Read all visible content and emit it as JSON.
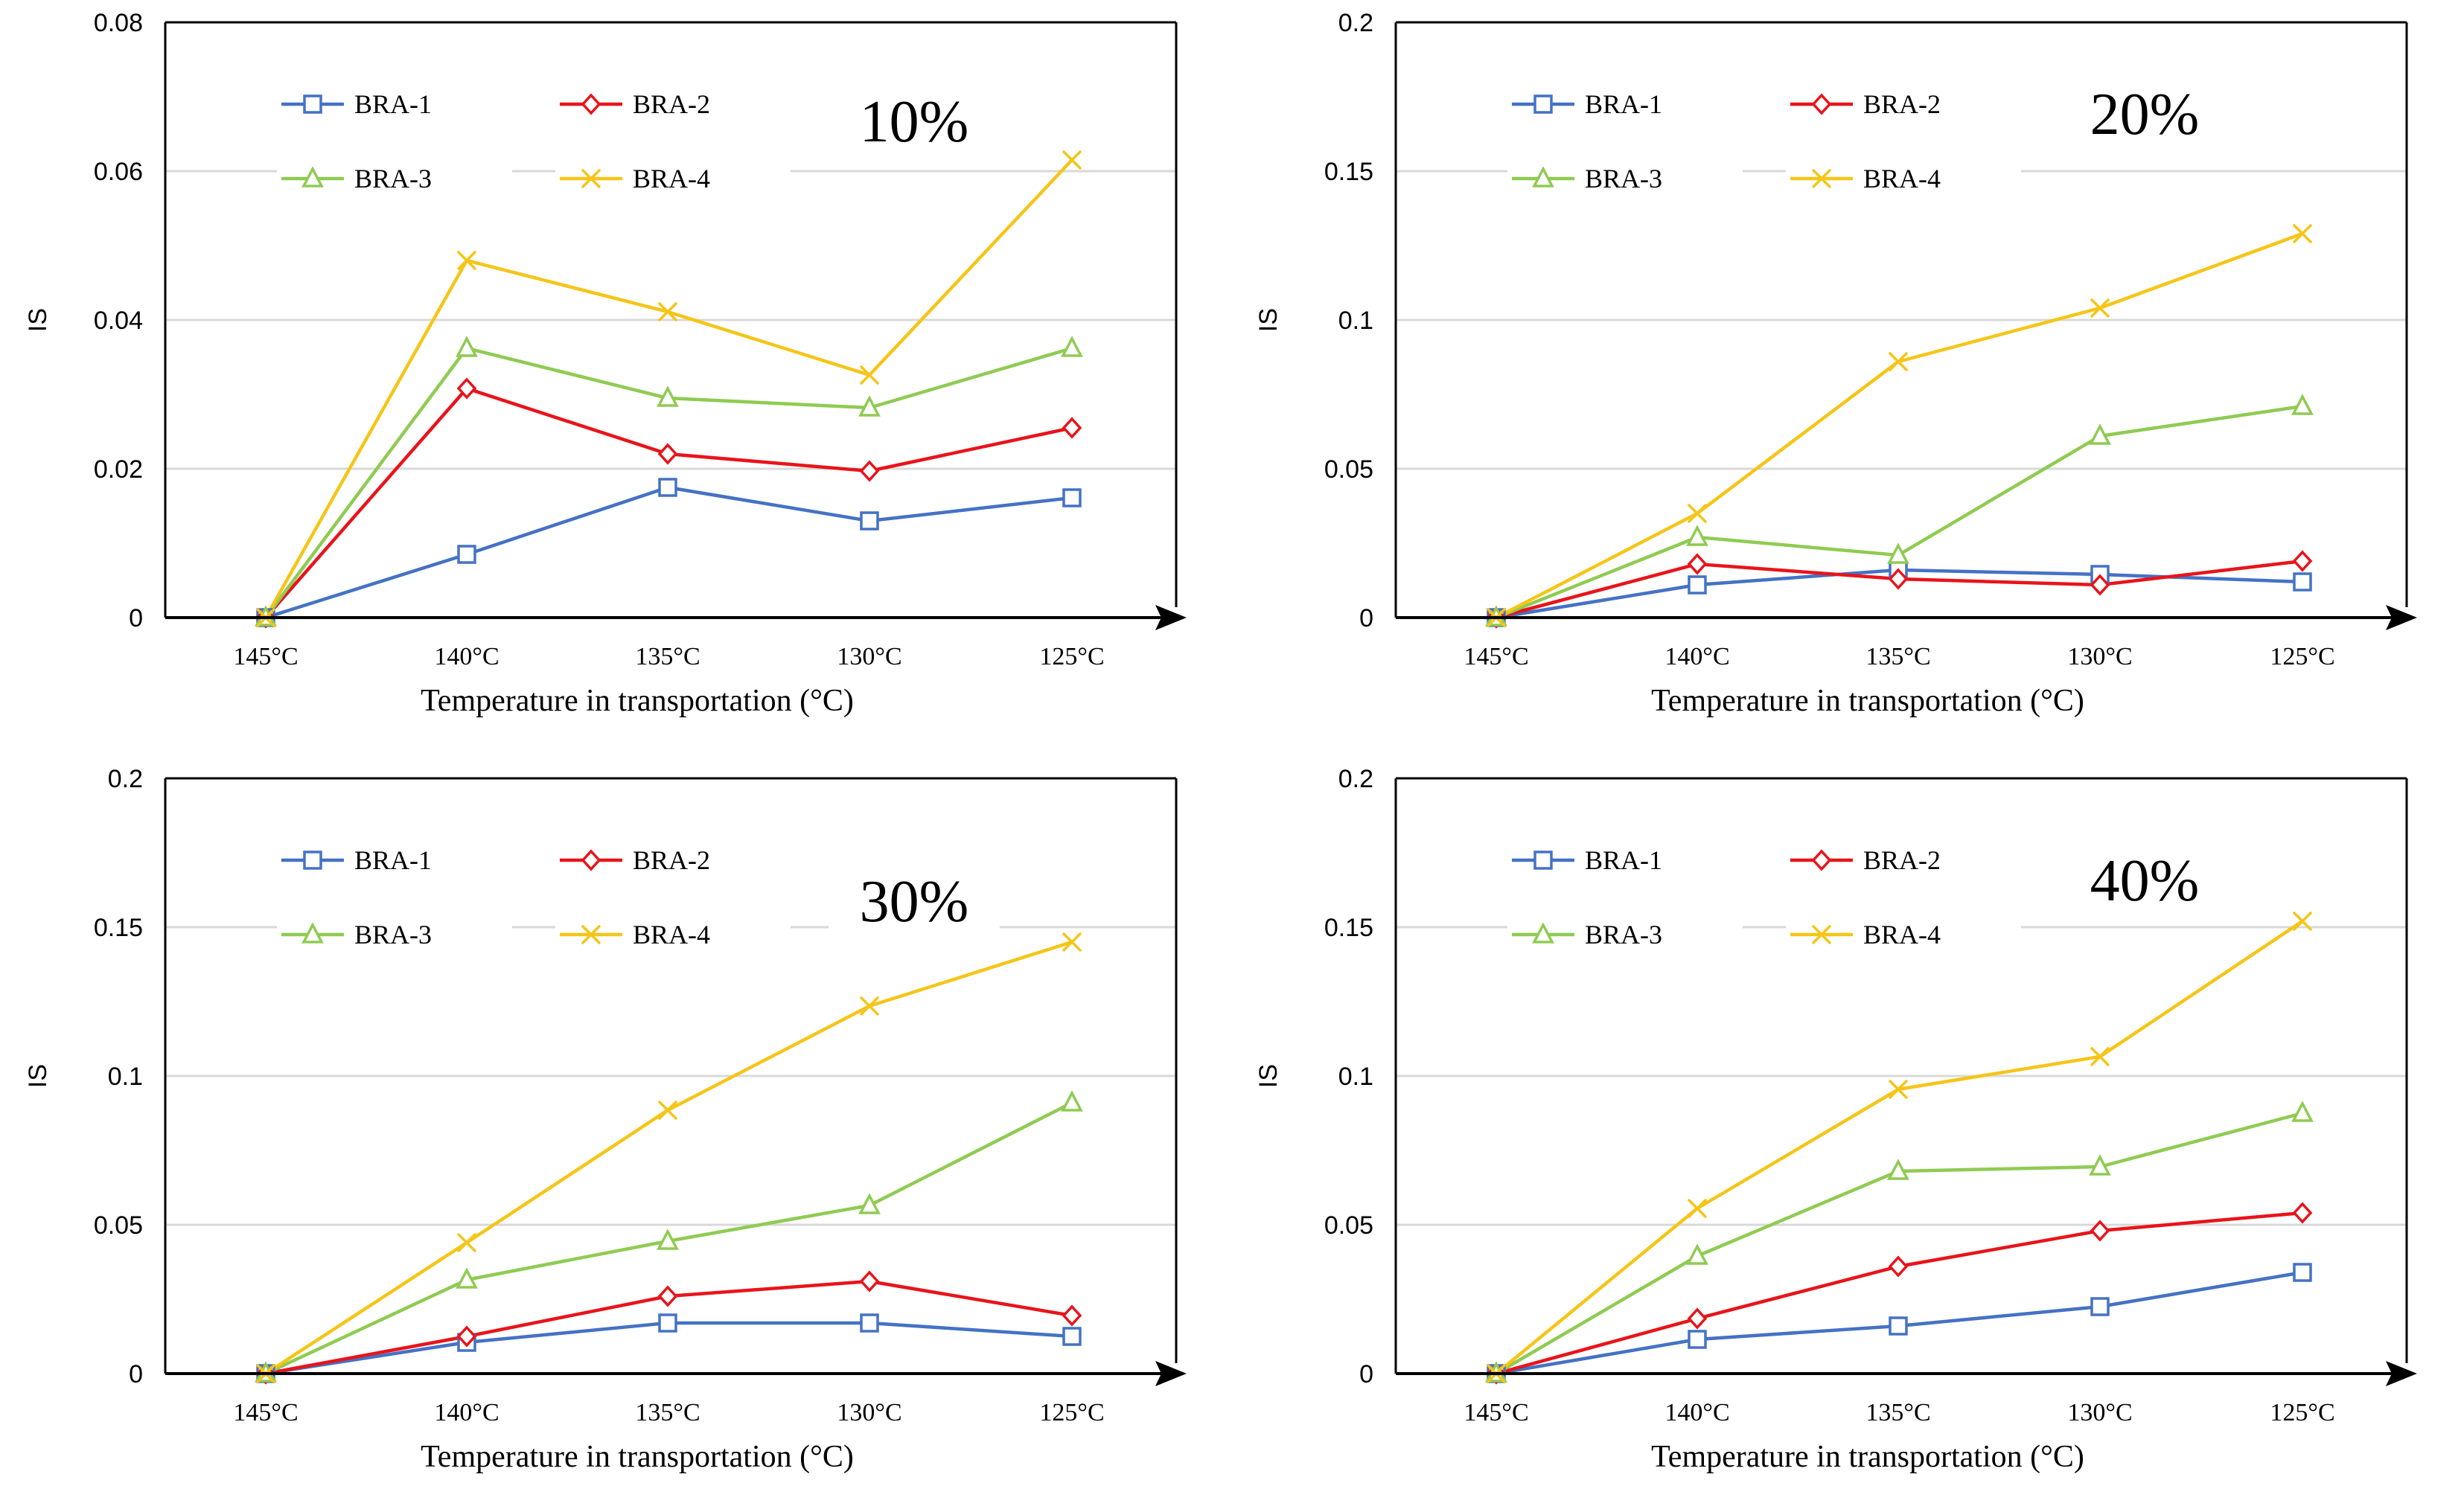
{
  "chart_data": [
    {
      "type": "line",
      "title": "10%",
      "xlabel": "Temperature in transportation (°C)",
      "ylabel": "IS",
      "categories": [
        "145°C",
        "140°C",
        "135°C",
        "130°C",
        "125°C"
      ],
      "ylim": [
        0,
        0.08
      ],
      "yticks": [
        0,
        0.02,
        0.04,
        0.06,
        0.08
      ],
      "ytick_labels": [
        "0",
        "0.02",
        "0.04",
        "0.06",
        "0.08"
      ],
      "series": [
        {
          "name": "BRA-1",
          "values": [
            0,
            0.0085,
            0.0175,
            0.013,
            0.0161
          ]
        },
        {
          "name": "BRA-2",
          "values": [
            0,
            0.0308,
            0.022,
            0.0197,
            0.0255
          ]
        },
        {
          "name": "BRA-3",
          "values": [
            0,
            0.0362,
            0.0295,
            0.0282,
            0.0362
          ]
        },
        {
          "name": "BRA-4",
          "values": [
            0,
            0.048,
            0.0411,
            0.0326,
            0.0615
          ]
        }
      ]
    },
    {
      "type": "line",
      "title": "20%",
      "xlabel": "Temperature in transportation (°C)",
      "ylabel": "IS",
      "categories": [
        "145°C",
        "140°C",
        "135°C",
        "130°C",
        "125°C"
      ],
      "ylim": [
        0,
        0.2
      ],
      "yticks": [
        0,
        0.05,
        0.1,
        0.15,
        0.2
      ],
      "ytick_labels": [
        "0",
        "0.05",
        "0.1",
        "0.15",
        "0.2"
      ],
      "series": [
        {
          "name": "BRA-1",
          "values": [
            0,
            0.011,
            0.016,
            0.0145,
            0.012
          ]
        },
        {
          "name": "BRA-2",
          "values": [
            0,
            0.018,
            0.013,
            0.011,
            0.019
          ]
        },
        {
          "name": "BRA-3",
          "values": [
            0,
            0.027,
            0.021,
            0.061,
            0.071
          ]
        },
        {
          "name": "BRA-4",
          "values": [
            0,
            0.035,
            0.086,
            0.104,
            0.129
          ]
        }
      ]
    },
    {
      "type": "line",
      "title": "30%",
      "xlabel": "Temperature in transportation (°C)",
      "ylabel": "IS",
      "categories": [
        "145°C",
        "140°C",
        "135°C",
        "130°C",
        "125°C"
      ],
      "ylim": [
        0,
        0.2
      ],
      "yticks": [
        0,
        0.05,
        0.1,
        0.15,
        0.2
      ],
      "ytick_labels": [
        "0",
        "0.05",
        "0.1",
        "0.15",
        "0.2"
      ],
      "series": [
        {
          "name": "BRA-1",
          "values": [
            0,
            0.0105,
            0.017,
            0.017,
            0.0125
          ]
        },
        {
          "name": "BRA-2",
          "values": [
            0,
            0.0125,
            0.026,
            0.031,
            0.0195
          ]
        },
        {
          "name": "BRA-3",
          "values": [
            0,
            0.0315,
            0.0445,
            0.0565,
            0.091
          ]
        },
        {
          "name": "BRA-4",
          "values": [
            0,
            0.044,
            0.0885,
            0.1235,
            0.145
          ]
        }
      ]
    },
    {
      "type": "line",
      "title": "40%",
      "xlabel": "Temperature in transportation (°C)",
      "ylabel": "IS",
      "categories": [
        "145°C",
        "140°C",
        "135°C",
        "130°C",
        "125°C"
      ],
      "ylim": [
        0,
        0.2
      ],
      "yticks": [
        0,
        0.05,
        0.1,
        0.15,
        0.2
      ],
      "ytick_labels": [
        "0",
        "0.05",
        "0.1",
        "0.15",
        "0.2"
      ],
      "series": [
        {
          "name": "BRA-1",
          "values": [
            0,
            0.0115,
            0.016,
            0.0225,
            0.034
          ]
        },
        {
          "name": "BRA-2",
          "values": [
            0,
            0.0185,
            0.036,
            0.048,
            0.054
          ]
        },
        {
          "name": "BRA-3",
          "values": [
            0,
            0.0395,
            0.068,
            0.0695,
            0.0875
          ]
        },
        {
          "name": "BRA-4",
          "values": [
            0,
            0.0555,
            0.0955,
            0.1065,
            0.152
          ]
        }
      ]
    }
  ],
  "series_styles": [
    {
      "name": "BRA-1",
      "color": "#4472C4",
      "marker": "square"
    },
    {
      "name": "BRA-2",
      "color": "#E8141B",
      "marker": "diamond"
    },
    {
      "name": "BRA-3",
      "color": "#8FCB52",
      "marker": "triangle"
    },
    {
      "name": "BRA-4",
      "color": "#F5C518",
      "marker": "x"
    }
  ]
}
